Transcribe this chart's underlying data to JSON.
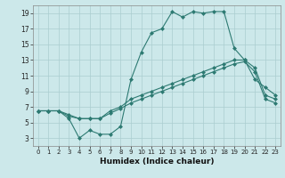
{
  "xlabel": "Humidex (Indice chaleur)",
  "bg_color": "#cce8ea",
  "grid_color": "#aacdd0",
  "line_color": "#2d7a72",
  "marker_color": "#2d7a72",
  "xlim": [
    -0.5,
    23.5
  ],
  "ylim": [
    2.0,
    20.0
  ],
  "yticks": [
    3,
    5,
    7,
    9,
    11,
    13,
    15,
    17,
    19
  ],
  "xticks": [
    0,
    1,
    2,
    3,
    4,
    5,
    6,
    7,
    8,
    9,
    10,
    11,
    12,
    13,
    14,
    15,
    16,
    17,
    18,
    19,
    20,
    21,
    22,
    23
  ],
  "series1_x": [
    0,
    1,
    2,
    3,
    4,
    5,
    6,
    7,
    8,
    9,
    10,
    11,
    12,
    13,
    14,
    15,
    16,
    17,
    18,
    19,
    20,
    21,
    22,
    23
  ],
  "series1_y": [
    6.5,
    6.5,
    6.5,
    5.5,
    3.0,
    4.0,
    3.5,
    3.5,
    4.5,
    10.5,
    14.0,
    16.5,
    17.0,
    19.2,
    18.5,
    19.2,
    19.0,
    19.2,
    19.2,
    14.5,
    13.0,
    10.5,
    9.5,
    8.5
  ],
  "series2_x": [
    0,
    1,
    2,
    3,
    4,
    5,
    6,
    7,
    8,
    9,
    10,
    11,
    12,
    13,
    14,
    15,
    16,
    17,
    18,
    19,
    20,
    21,
    22,
    23
  ],
  "series2_y": [
    6.5,
    6.5,
    6.5,
    6.0,
    5.5,
    5.5,
    5.5,
    6.5,
    7.0,
    8.0,
    8.5,
    9.0,
    9.5,
    10.0,
    10.5,
    11.0,
    11.5,
    12.0,
    12.5,
    13.0,
    13.0,
    12.0,
    8.5,
    8.0
  ],
  "series3_x": [
    0,
    1,
    2,
    3,
    4,
    5,
    6,
    7,
    8,
    9,
    10,
    11,
    12,
    13,
    14,
    15,
    16,
    17,
    18,
    19,
    20,
    21,
    22,
    23
  ],
  "series3_y": [
    6.5,
    6.5,
    6.5,
    5.8,
    5.5,
    5.5,
    5.5,
    6.2,
    6.8,
    7.5,
    8.0,
    8.5,
    9.0,
    9.5,
    10.0,
    10.5,
    11.0,
    11.5,
    12.0,
    12.5,
    12.8,
    11.5,
    8.0,
    7.5
  ]
}
